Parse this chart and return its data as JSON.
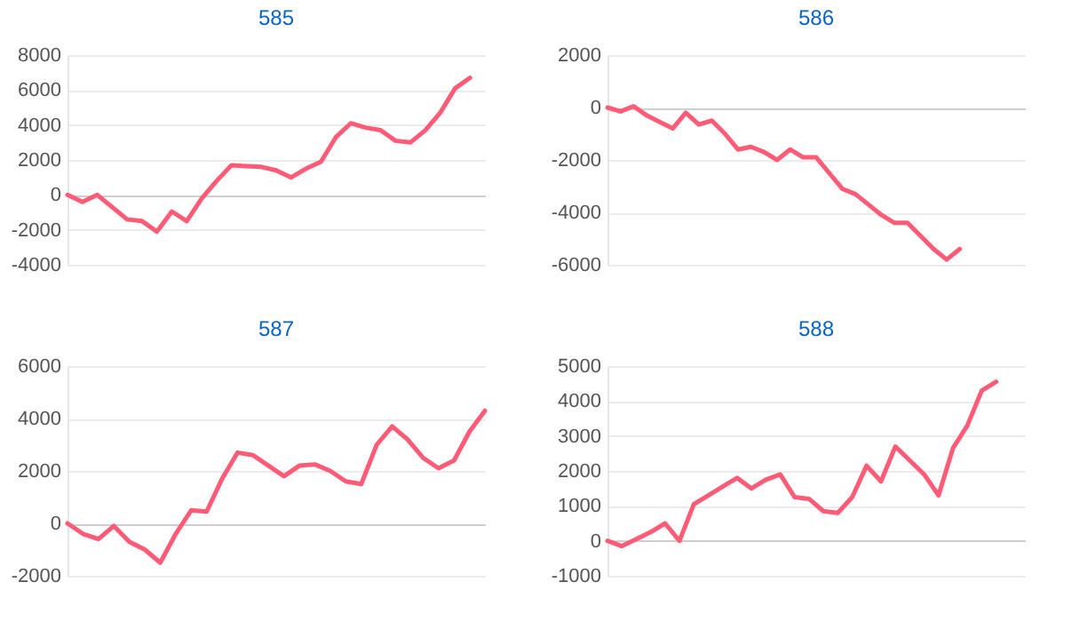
{
  "chart_data": [
    {
      "type": "line",
      "title": "585",
      "color": "#ff5a76",
      "grid": "y",
      "tick_labels": "y",
      "ylim": [
        -4000,
        8000
      ],
      "yticks": [
        -4000,
        -2000,
        0,
        2000,
        4000,
        6000,
        8000
      ],
      "categories": [
        null,
        null,
        null,
        null,
        null,
        null,
        null,
        null,
        null,
        null,
        null,
        null,
        null,
        null,
        null,
        null,
        null,
        null,
        null,
        null,
        null,
        null,
        null,
        null,
        null,
        null,
        null,
        null,
        null
      ],
      "values": [
        0,
        -400,
        0,
        -700,
        -1400,
        -1500,
        -2100,
        -950,
        -1500,
        -200,
        800,
        1700,
        1650,
        1600,
        1400,
        1000,
        1500,
        1900,
        3300,
        4100,
        3850,
        3700,
        3100,
        3000,
        3700,
        4700,
        6100,
        6700,
        null
      ]
    },
    {
      "type": "line",
      "title": "586",
      "color": "#ff5a76",
      "grid": "y",
      "tick_labels": "y",
      "ylim": [
        -6000,
        2000
      ],
      "yticks": [
        -6000,
        -4000,
        -2000,
        0,
        2000
      ],
      "categories": [
        null,
        null,
        null,
        null,
        null,
        null,
        null,
        null,
        null,
        null,
        null,
        null,
        null,
        null,
        null,
        null,
        null,
        null,
        null,
        null,
        null,
        null,
        null,
        null,
        null,
        null,
        null,
        null,
        null,
        null,
        null,
        null,
        null
      ],
      "values": [
        0,
        -150,
        50,
        -300,
        -550,
        -800,
        -200,
        -650,
        -500,
        -1000,
        -1600,
        -1500,
        -1700,
        -2000,
        -1600,
        -1900,
        -1900,
        -2500,
        -3100,
        -3300,
        -3700,
        -4100,
        -4400,
        -4400,
        -4900,
        -5400,
        -5800,
        -5400,
        null,
        null,
        null,
        null,
        null
      ]
    },
    {
      "type": "line",
      "title": "587",
      "color": "#ff5a76",
      "grid": "y",
      "tick_labels": "y",
      "ylim": [
        -2000,
        6000
      ],
      "yticks": [
        -2000,
        0,
        2000,
        4000,
        6000
      ],
      "categories": [
        null,
        null,
        null,
        null,
        null,
        null,
        null,
        null,
        null,
        null,
        null,
        null,
        null,
        null,
        null,
        null,
        null,
        null,
        null,
        null,
        null,
        null,
        null,
        null,
        null,
        null,
        null,
        null
      ],
      "values": [
        0,
        -400,
        -600,
        -100,
        -700,
        -1000,
        -1500,
        -400,
        500,
        450,
        1700,
        2700,
        2600,
        2200,
        1800,
        2200,
        2250,
        2000,
        1600,
        1500,
        3000,
        3700,
        3200,
        2500,
        2100,
        2400,
        3500,
        4300
      ]
    },
    {
      "type": "line",
      "title": "588",
      "color": "#ff5a76",
      "grid": "y",
      "tick_labels": "y",
      "ylim": [
        -1000,
        5000
      ],
      "yticks": [
        -1000,
        0,
        1000,
        2000,
        3000,
        4000,
        5000
      ],
      "categories": [
        null,
        null,
        null,
        null,
        null,
        null,
        null,
        null,
        null,
        null,
        null,
        null,
        null,
        null,
        null,
        null,
        null,
        null,
        null,
        null,
        null,
        null,
        null,
        null,
        null,
        null,
        null,
        null,
        null,
        null
      ],
      "values": [
        0,
        -150,
        50,
        250,
        500,
        0,
        1050,
        1300,
        1550,
        1800,
        1500,
        1750,
        1900,
        1250,
        1200,
        850,
        800,
        1250,
        2150,
        1700,
        2700,
        2300,
        1900,
        1300,
        2650,
        3300,
        4300,
        4550,
        null,
        null
      ]
    }
  ]
}
